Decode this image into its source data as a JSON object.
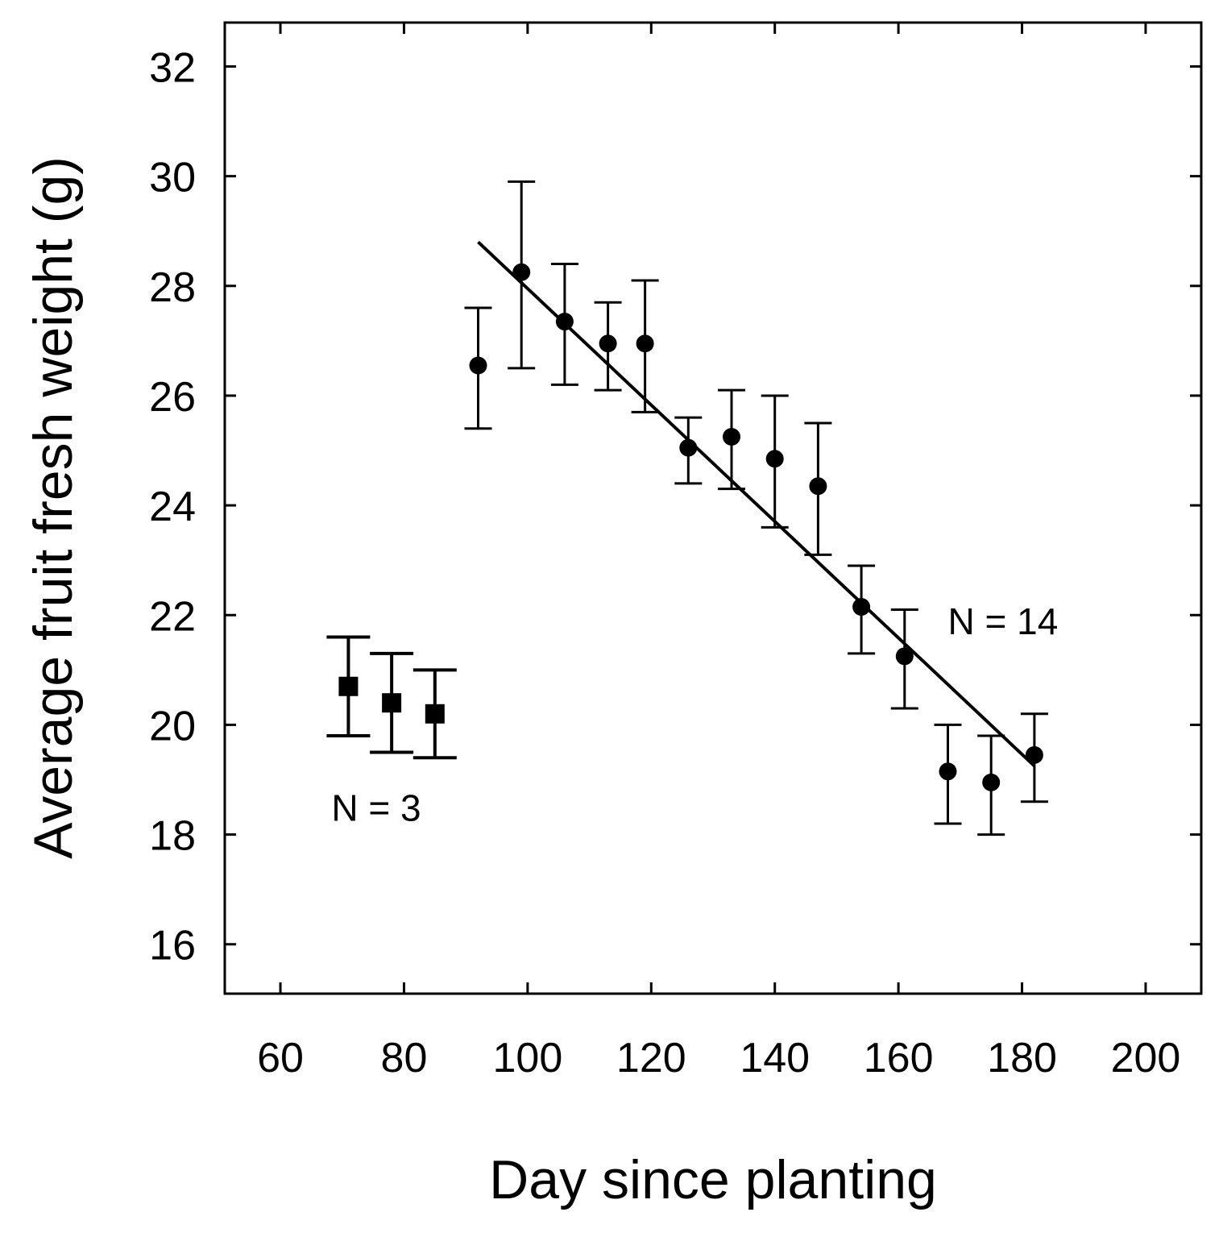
{
  "chart_data": {
    "type": "scatter",
    "title": "",
    "xlabel": "Day since planting",
    "ylabel": "Average fruit fresh weight (g)",
    "xlim": [
      51,
      209
    ],
    "ylim": [
      15.1,
      32.8
    ],
    "xticks": [
      60,
      80,
      100,
      120,
      140,
      160,
      180,
      200
    ],
    "yticks": [
      16,
      18,
      20,
      22,
      24,
      26,
      28,
      30,
      32
    ],
    "grid": false,
    "legend": "none",
    "series": [
      {
        "name": "N = 3",
        "marker": "square",
        "points": [
          {
            "x": 71,
            "y": 20.7,
            "err_low": 19.8,
            "err_high": 21.6
          },
          {
            "x": 78,
            "y": 20.4,
            "err_low": 19.5,
            "err_high": 21.3
          },
          {
            "x": 85,
            "y": 20.2,
            "err_low": 19.4,
            "err_high": 21.0
          }
        ]
      },
      {
        "name": "N = 14",
        "marker": "circle",
        "points": [
          {
            "x": 92,
            "y": 26.55,
            "err_low": 25.4,
            "err_high": 27.6
          },
          {
            "x": 99,
            "y": 28.25,
            "err_low": 26.5,
            "err_high": 29.9
          },
          {
            "x": 106,
            "y": 27.35,
            "err_low": 26.2,
            "err_high": 28.4
          },
          {
            "x": 113,
            "y": 26.95,
            "err_low": 26.1,
            "err_high": 27.7
          },
          {
            "x": 119,
            "y": 26.95,
            "err_low": 25.7,
            "err_high": 28.1
          },
          {
            "x": 126,
            "y": 25.05,
            "err_low": 24.4,
            "err_high": 25.6
          },
          {
            "x": 133,
            "y": 25.25,
            "err_low": 24.3,
            "err_high": 26.1
          },
          {
            "x": 140,
            "y": 24.85,
            "err_low": 23.6,
            "err_high": 26.0
          },
          {
            "x": 147,
            "y": 24.35,
            "err_low": 23.1,
            "err_high": 25.5
          },
          {
            "x": 154,
            "y": 22.15,
            "err_low": 21.3,
            "err_high": 22.9
          },
          {
            "x": 161,
            "y": 21.25,
            "err_low": 20.3,
            "err_high": 22.1
          },
          {
            "x": 168,
            "y": 19.15,
            "err_low": 18.2,
            "err_high": 20.0
          },
          {
            "x": 175,
            "y": 18.95,
            "err_low": 18.0,
            "err_high": 19.8
          },
          {
            "x": 182,
            "y": 19.45,
            "err_low": 18.6,
            "err_high": 20.2
          }
        ]
      }
    ],
    "trendline": {
      "series": "N = 14",
      "x": [
        92,
        182
      ],
      "y": [
        28.8,
        19.25
      ]
    },
    "annotations": [
      {
        "text": "N = 3",
        "x": 75.5,
        "y": 18.25
      },
      {
        "text": "N = 14",
        "x": 168,
        "y": 21.65
      }
    ]
  }
}
